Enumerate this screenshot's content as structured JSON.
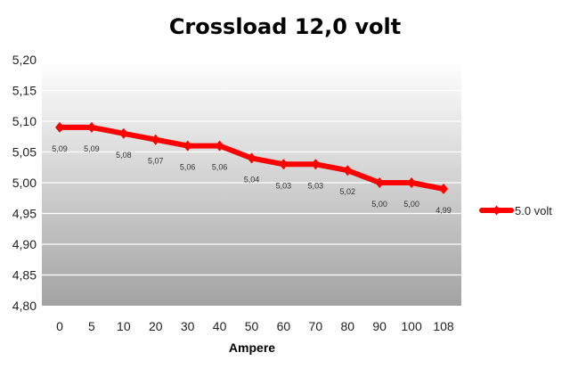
{
  "chart_data": {
    "type": "line",
    "title": "Crossload 12,0 volt",
    "xlabel": "Ampere",
    "ylabel": "",
    "categories": [
      "0",
      "5",
      "10",
      "20",
      "30",
      "40",
      "50",
      "60",
      "70",
      "80",
      "90",
      "100",
      "108"
    ],
    "series": [
      {
        "name": "5.0 volt",
        "values": [
          5.09,
          5.09,
          5.08,
          5.07,
          5.06,
          5.06,
          5.04,
          5.03,
          5.03,
          5.02,
          5.0,
          5.0,
          4.99
        ],
        "data_labels": [
          "5,09",
          "5,09",
          "5,08",
          "5,07",
          "5,06",
          "5,06",
          "5,04",
          "5,03",
          "5,03",
          "5,02",
          "5,00",
          "5,00",
          "4,99"
        ]
      }
    ],
    "ylim": [
      4.8,
      5.2
    ],
    "yticks": [
      "4,80",
      "4,85",
      "4,90",
      "4,95",
      "5,00",
      "5,05",
      "5,10",
      "5,15",
      "5,20"
    ],
    "grid": true,
    "legend_position": "right",
    "colors": {
      "series": "#ff0000",
      "grid": "#ffffff",
      "plot_top": "#ffffff",
      "plot_bottom": "#a3a3a3"
    }
  }
}
